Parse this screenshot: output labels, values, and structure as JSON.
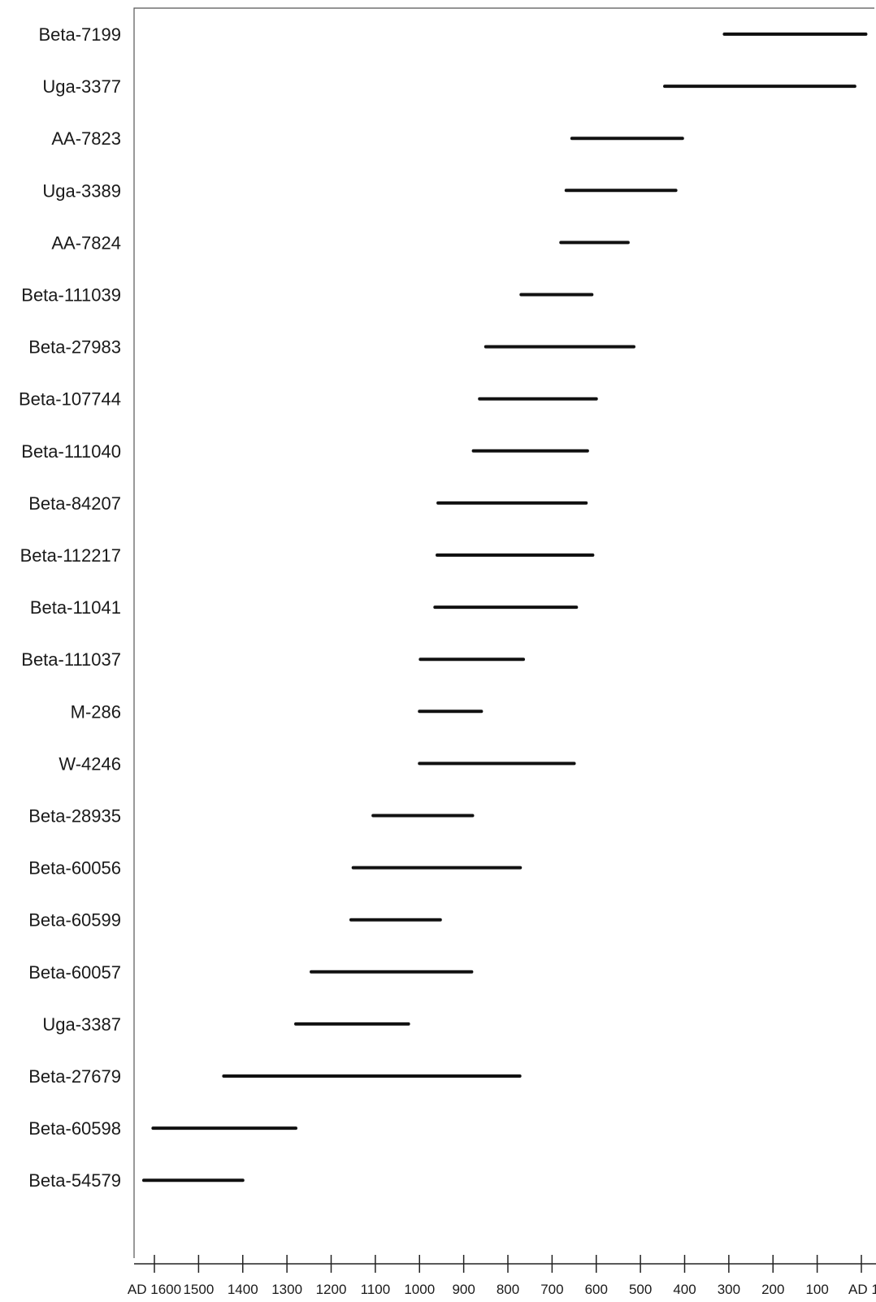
{
  "chart_data": {
    "type": "range",
    "title": "",
    "xlabel": "",
    "ylabel": "",
    "x_direction": "reversed",
    "xlim": [
      1600,
      0
    ],
    "grid": false,
    "x_ticks": [
      {
        "value": 1600,
        "label": "AD 1600"
      },
      {
        "value": 1500,
        "label": "1500"
      },
      {
        "value": 1400,
        "label": "1400"
      },
      {
        "value": 1300,
        "label": "1300"
      },
      {
        "value": 1200,
        "label": "1200"
      },
      {
        "value": 1100,
        "label": "1100"
      },
      {
        "value": 1000,
        "label": "1000"
      },
      {
        "value": 900,
        "label": "900"
      },
      {
        "value": 800,
        "label": "800"
      },
      {
        "value": 700,
        "label": "700"
      },
      {
        "value": 600,
        "label": "600"
      },
      {
        "value": 500,
        "label": "500"
      },
      {
        "value": 400,
        "label": "400"
      },
      {
        "value": 300,
        "label": "300"
      },
      {
        "value": 200,
        "label": "200"
      },
      {
        "value": 100,
        "label": "100"
      },
      {
        "value": 0,
        "label": "AD 1"
      }
    ],
    "samples": [
      {
        "label": "Beta-7199",
        "start": 310,
        "end": -10
      },
      {
        "label": "Uga-3377",
        "start": 445,
        "end": 15
      },
      {
        "label": "AA-7823",
        "start": 655,
        "end": 405
      },
      {
        "label": "Uga-3389",
        "start": 668,
        "end": 420
      },
      {
        "label": "AA-7824",
        "start": 680,
        "end": 528
      },
      {
        "label": "Beta-111039",
        "start": 770,
        "end": 610
      },
      {
        "label": "Beta-27983",
        "start": 850,
        "end": 515
      },
      {
        "label": "Beta-107744",
        "start": 864,
        "end": 600
      },
      {
        "label": "Beta-111040",
        "start": 878,
        "end": 620
      },
      {
        "label": "Beta-84207",
        "start": 958,
        "end": 623
      },
      {
        "label": "Beta-112217",
        "start": 960,
        "end": 608
      },
      {
        "label": "Beta-11041",
        "start": 965,
        "end": 645
      },
      {
        "label": "Beta-111037",
        "start": 998,
        "end": 765
      },
      {
        "label": "M-286",
        "start": 1000,
        "end": 860
      },
      {
        "label": "W-4246",
        "start": 1000,
        "end": 650
      },
      {
        "label": "Beta-28935",
        "start": 1105,
        "end": 880
      },
      {
        "label": "Beta-60056",
        "start": 1150,
        "end": 772
      },
      {
        "label": "Beta-60599",
        "start": 1155,
        "end": 953
      },
      {
        "label": "Beta-60057",
        "start": 1245,
        "end": 882
      },
      {
        "label": "Uga-3387",
        "start": 1280,
        "end": 1025
      },
      {
        "label": "Beta-27679",
        "start": 1443,
        "end": 773
      },
      {
        "label": "Beta-60598",
        "start": 1603,
        "end": 1280
      },
      {
        "label": "Beta-54579",
        "start": 1624,
        "end": 1400
      }
    ]
  }
}
